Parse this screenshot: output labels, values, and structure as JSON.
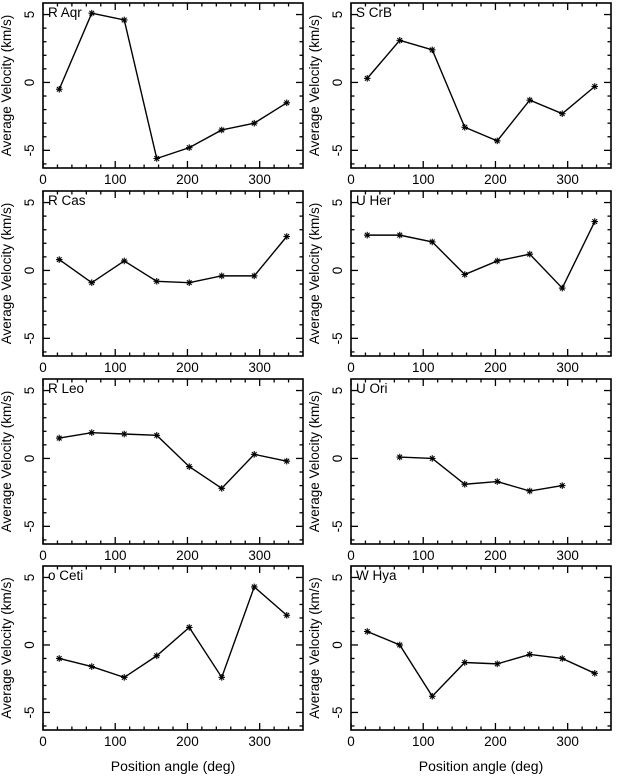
{
  "figure": {
    "background": "#ffffff",
    "ink_color": "#000000"
  },
  "chart_data": {
    "type": "line",
    "layout": "grid-4rows-2cols",
    "shared_xlabel": "Position angle (deg)",
    "shared_ylabel": "Average Velocity (km/s)",
    "xlim": [
      0,
      360
    ],
    "ylim": [
      -6.3,
      5.85
    ],
    "xticks": [
      0,
      100,
      200,
      300
    ],
    "yticks": [
      -5,
      0,
      5
    ],
    "x_minor_step": 20,
    "y_minor_step": 1,
    "grid": false,
    "marker": "asterisk",
    "line_color": "#000000",
    "panels": [
      {
        "title": "R Aqr",
        "x": [
          22.5,
          67.5,
          112.5,
          157.5,
          202.5,
          247.5,
          292.5,
          337.5
        ],
        "y": [
          -0.5,
          5.1,
          4.6,
          -5.6,
          -4.8,
          -3.5,
          -3.0,
          -1.5
        ]
      },
      {
        "title": "S CrB",
        "x": [
          22.5,
          67.5,
          112.5,
          157.5,
          202.5,
          247.5,
          292.5,
          337.5
        ],
        "y": [
          0.3,
          3.1,
          2.4,
          -3.3,
          -4.3,
          -1.3,
          -2.3,
          -0.3
        ]
      },
      {
        "title": "R Cas",
        "x": [
          22.5,
          67.5,
          112.5,
          157.5,
          202.5,
          247.5,
          292.5,
          337.5
        ],
        "y": [
          0.8,
          -0.9,
          0.7,
          -0.8,
          -0.9,
          -0.4,
          -0.4,
          2.5
        ]
      },
      {
        "title": "U Her",
        "x": [
          22.5,
          67.5,
          112.5,
          157.5,
          202.5,
          247.5,
          292.5,
          337.5
        ],
        "y": [
          2.6,
          2.6,
          2.1,
          -0.3,
          0.7,
          1.2,
          -1.3,
          3.6
        ]
      },
      {
        "title": "R Leo",
        "x": [
          22.5,
          67.5,
          112.5,
          157.5,
          202.5,
          247.5,
          292.5,
          337.5
        ],
        "y": [
          1.5,
          1.9,
          1.8,
          1.7,
          -0.6,
          -2.2,
          0.3,
          -0.2
        ]
      },
      {
        "title": "U Ori",
        "x": [
          67.5,
          112.5,
          157.5,
          202.5,
          247.5,
          292.5
        ],
        "y": [
          0.1,
          0.0,
          -1.9,
          -1.7,
          -2.4,
          -2.0
        ]
      },
      {
        "title": "o Ceti",
        "x": [
          22.5,
          67.5,
          112.5,
          157.5,
          202.5,
          247.5,
          292.5,
          337.5
        ],
        "y": [
          -1.0,
          -1.6,
          -2.4,
          -0.8,
          1.3,
          -2.4,
          4.3,
          2.2
        ]
      },
      {
        "title": "W Hya",
        "x": [
          22.5,
          67.5,
          112.5,
          157.5,
          202.5,
          247.5,
          292.5,
          337.5
        ],
        "y": [
          1.0,
          0.0,
          -3.8,
          -1.3,
          -1.4,
          -0.7,
          -1.0,
          -2.1
        ]
      }
    ]
  }
}
